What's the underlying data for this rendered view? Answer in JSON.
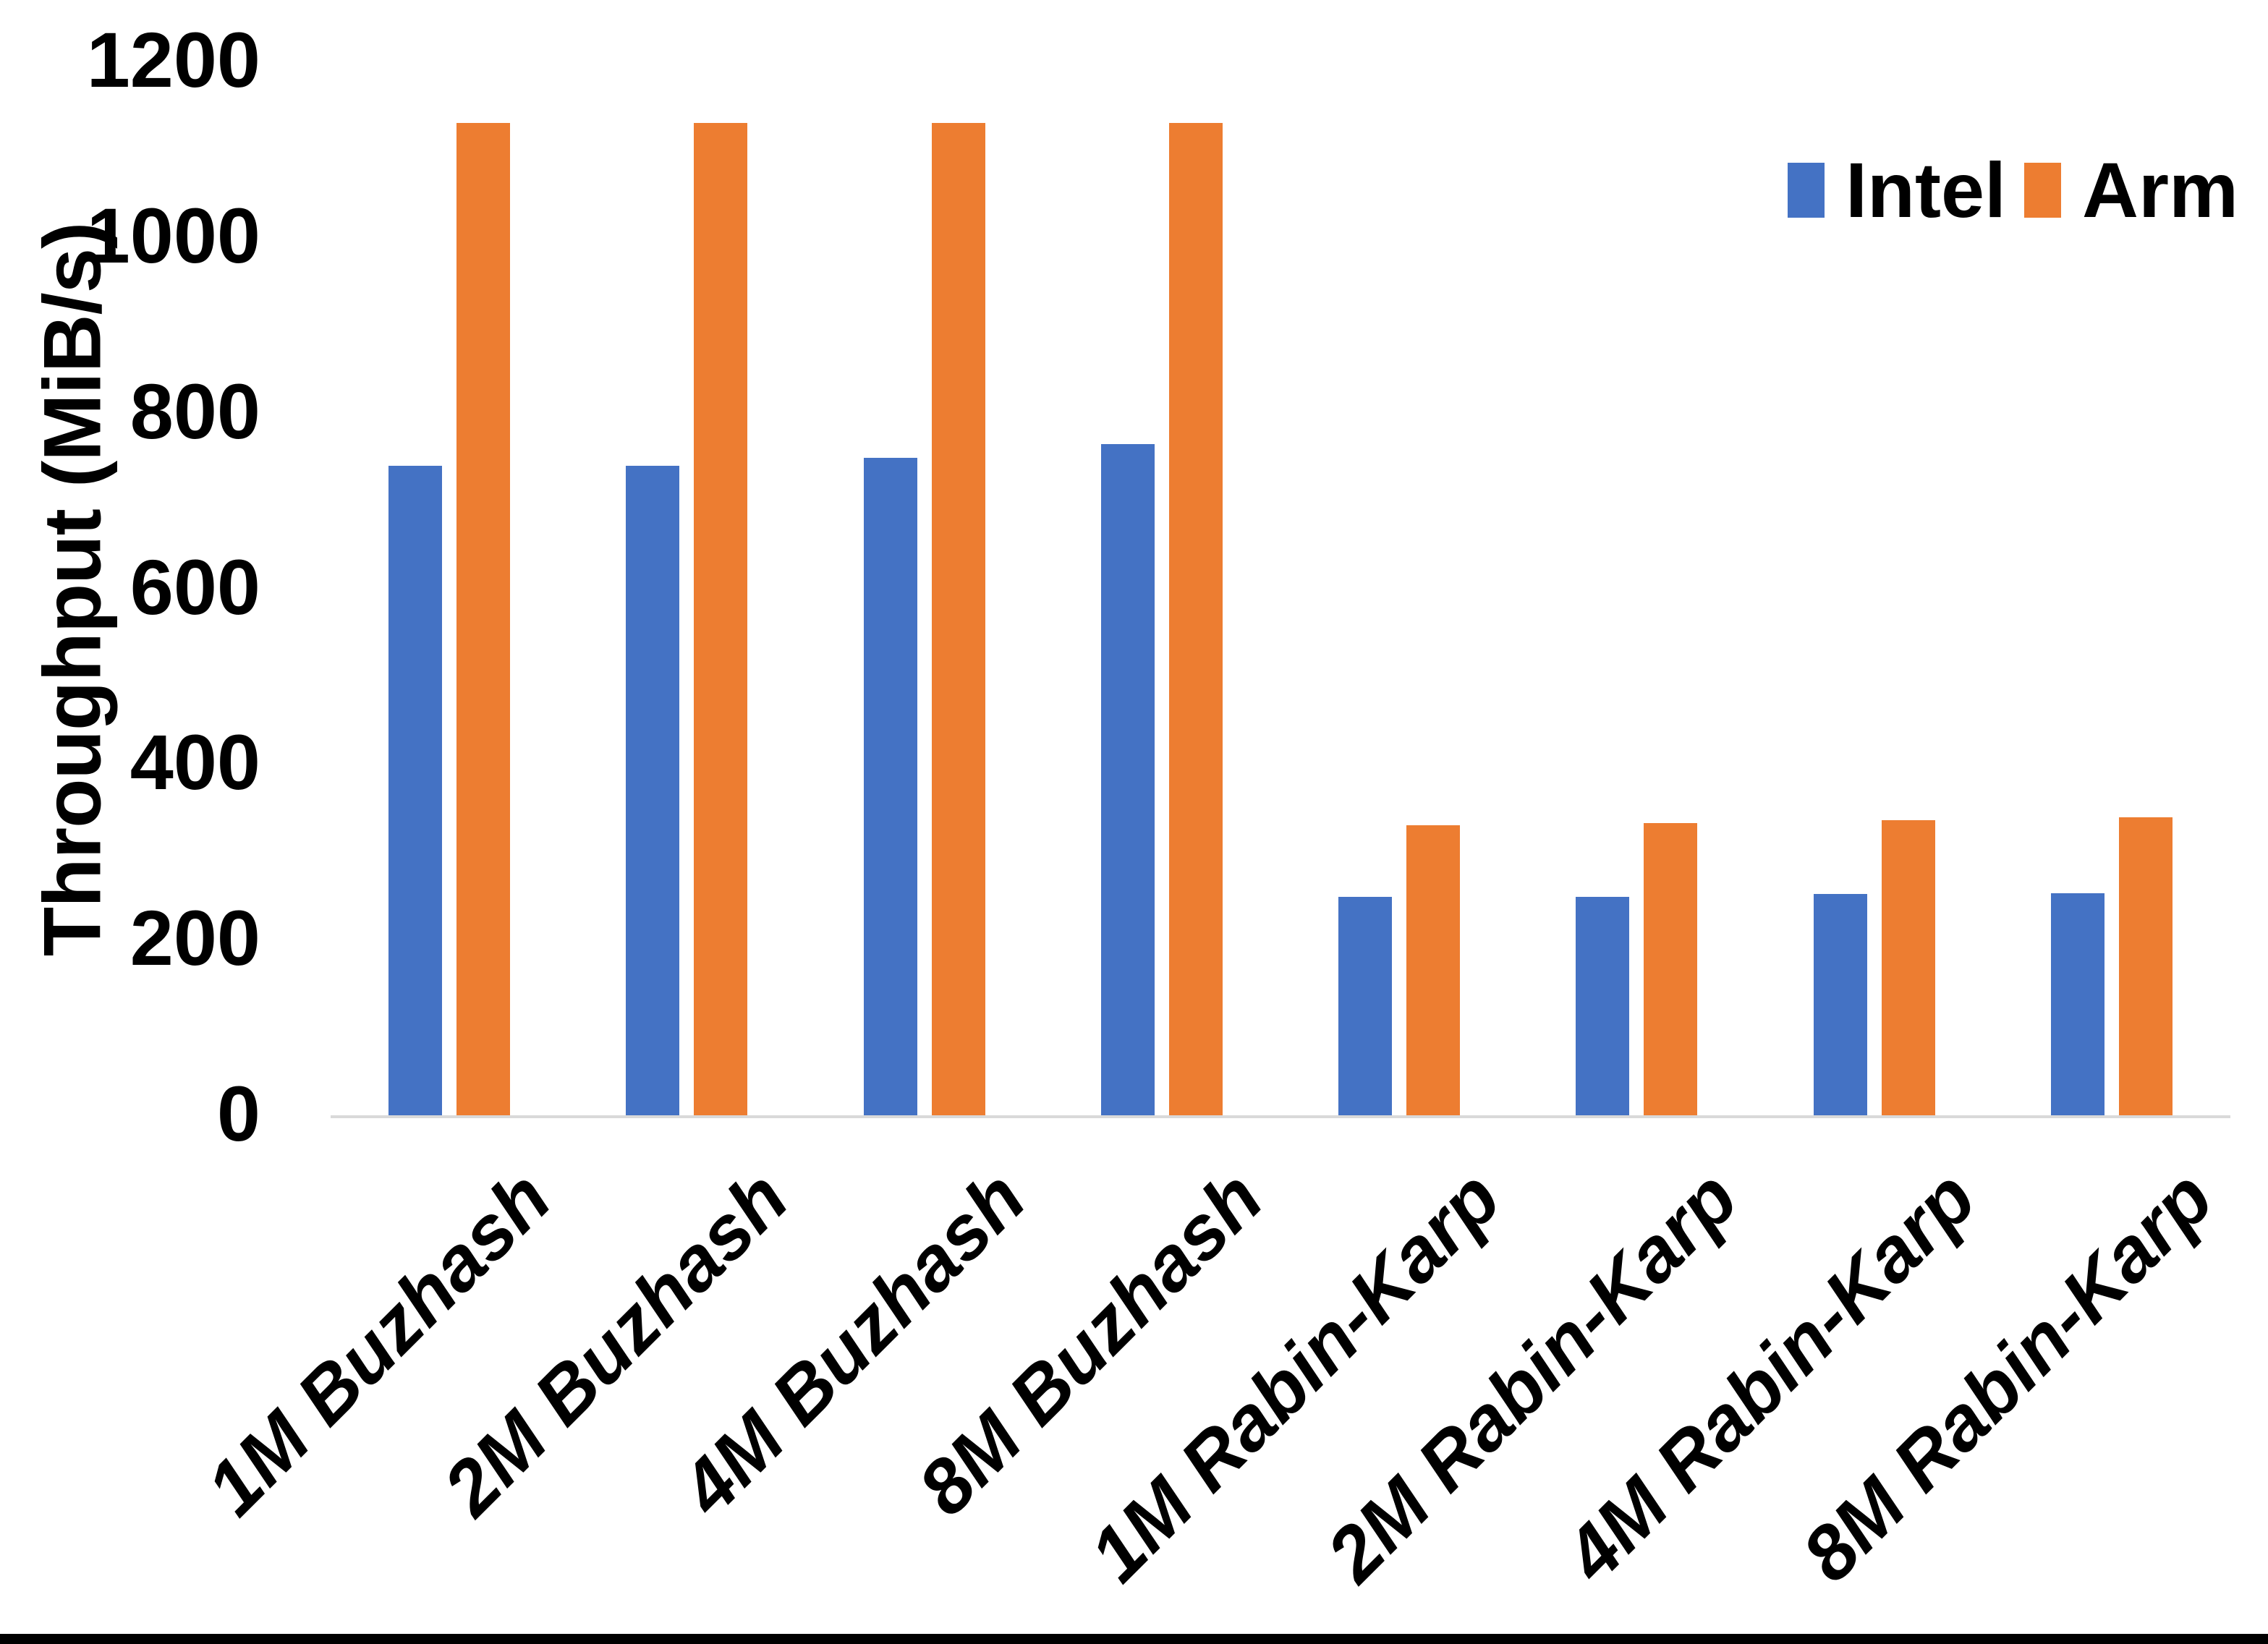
{
  "chart_data": {
    "type": "bar",
    "title": "",
    "xlabel": "",
    "ylabel": "Throughput (MiB/s)",
    "ylim": [
      0,
      1200
    ],
    "yticks": [
      0,
      200,
      400,
      600,
      800,
      1000,
      1200
    ],
    "grid": false,
    "legend_position": "top-right",
    "axis_line_color": "#d9d9d9",
    "text_color": "#000000",
    "categories": [
      "1M Buzhash",
      "2M Buzhash",
      "4M Buzhash",
      "8M Buzhash",
      "1M Rabin-Karp",
      "2M Rabin-Karp",
      "4M Rabin-Karp",
      "8M Rabin-Karp"
    ],
    "series": [
      {
        "name": "Intel",
        "color": "#4472C4",
        "values": [
          740,
          740,
          749,
          764,
          249,
          249,
          252,
          253
        ]
      },
      {
        "name": "Arm",
        "color": "#ED7D31",
        "values": [
          1130,
          1130,
          1130,
          1130,
          330,
          333,
          336,
          339
        ]
      }
    ]
  },
  "legend": {
    "items": [
      {
        "label": "Intel",
        "color": "#4472C4"
      },
      {
        "label": "Arm",
        "color": "#ED7D31"
      }
    ]
  }
}
